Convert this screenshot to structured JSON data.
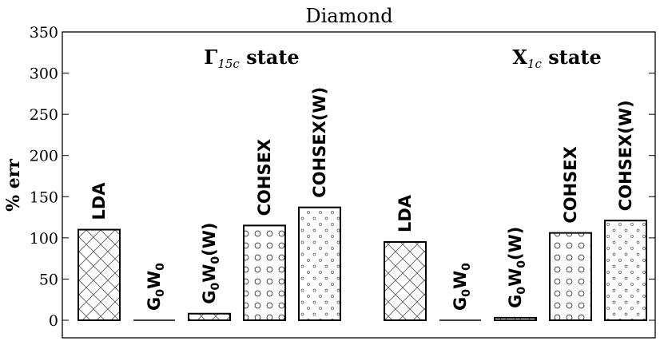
{
  "chart_data": {
    "type": "bar",
    "title": "Diamond",
    "ylabel": "% err",
    "ylim": [
      0,
      350
    ],
    "yticks": [
      0,
      50,
      100,
      150,
      200,
      250,
      300,
      350
    ],
    "grid": false,
    "groups": [
      {
        "label_main": "Γ",
        "label_sub": "15c",
        "label_rest": " state"
      },
      {
        "label_main": "X",
        "label_sub": "1c",
        "label_rest": " state"
      }
    ],
    "series": [
      {
        "label": "LDA",
        "label_base": "LDA",
        "label_sub": "",
        "label_tail": "",
        "pattern": "crosshatch",
        "values": [
          110,
          95
        ]
      },
      {
        "label": "G0W0",
        "label_base": "G",
        "label_sub": "0",
        "label_tail": "W",
        "label_sub2": "0",
        "label_end": "",
        "pattern": "none",
        "values": [
          0,
          0
        ]
      },
      {
        "label": "G0W0(W)",
        "label_base": "G",
        "label_sub": "0",
        "label_tail": "W",
        "label_sub2": "0",
        "label_end": "(W)",
        "pattern": "crosshatch",
        "values": [
          8,
          3
        ]
      },
      {
        "label": "COHSEX",
        "label_base": "COHSEX",
        "label_sub": "",
        "label_tail": "",
        "pattern": "circles",
        "values": [
          115,
          106
        ]
      },
      {
        "label": "COHSEX(W)",
        "label_base": "COHSEX(W)",
        "label_sub": "",
        "label_tail": "",
        "pattern": "small-circles",
        "values": [
          137,
          121
        ]
      }
    ]
  }
}
